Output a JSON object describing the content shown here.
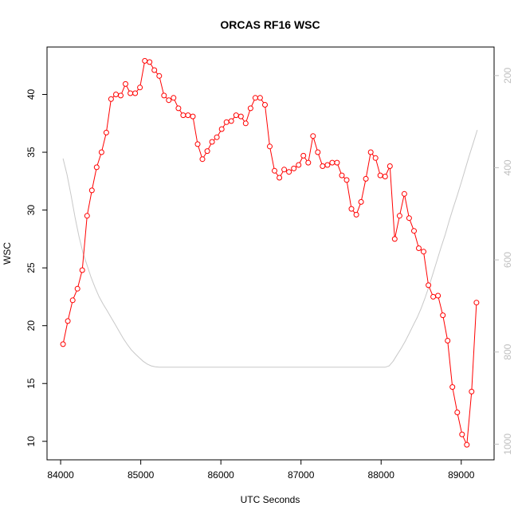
{
  "chart_data": {
    "type": "line",
    "title": "ORCAS RF16 WSC",
    "xlabel": "UTC Seconds",
    "ylabel": "WSC",
    "xlim": [
      83830,
      89410
    ],
    "ylim": [
      8.4,
      44.1
    ],
    "xticks": [
      84000,
      85000,
      86000,
      87000,
      88000,
      89000
    ],
    "yticks": [
      10,
      15,
      20,
      25,
      30,
      35,
      40
    ],
    "y2ticks": [
      200,
      400,
      600,
      800,
      1000
    ],
    "y2lim": [
      1034,
      138
    ],
    "series": [
      {
        "role": "primary",
        "color": "#ff0000",
        "marker": "circle-open",
        "x": [
          84030,
          84090,
          84150,
          84210,
          84270,
          84330,
          84390,
          84450,
          84510,
          84570,
          84630,
          84690,
          84750,
          84810,
          84870,
          84930,
          84990,
          85050,
          85110,
          85170,
          85230,
          85290,
          85350,
          85410,
          85470,
          85530,
          85590,
          85650,
          85710,
          85770,
          85830,
          85890,
          85950,
          86010,
          86070,
          86130,
          86190,
          86250,
          86310,
          86370,
          86430,
          86490,
          86550,
          86610,
          86670,
          86730,
          86790,
          86850,
          86910,
          86970,
          87030,
          87090,
          87150,
          87210,
          87270,
          87330,
          87390,
          87450,
          87510,
          87570,
          87630,
          87690,
          87750,
          87810,
          87870,
          87930,
          87990,
          88050,
          88110,
          88170,
          88230,
          88290,
          88350,
          88410,
          88470,
          88530,
          88590,
          88650,
          88710,
          88770,
          88830,
          88890,
          88950,
          89010,
          89070,
          89130,
          89190
        ],
        "y": [
          18.4,
          20.4,
          22.2,
          23.2,
          24.8,
          29.5,
          31.7,
          33.7,
          35.0,
          36.7,
          39.6,
          40.0,
          39.9,
          40.9,
          40.1,
          40.1,
          40.6,
          42.9,
          42.8,
          42.1,
          41.6,
          39.9,
          39.5,
          39.7,
          38.8,
          38.2,
          38.2,
          38.1,
          35.7,
          34.4,
          35.1,
          35.9,
          36.3,
          37.0,
          37.6,
          37.7,
          38.2,
          38.1,
          37.5,
          38.8,
          39.7,
          39.7,
          39.1,
          35.5,
          33.4,
          32.8,
          33.5,
          33.3,
          33.6,
          33.9,
          34.7,
          34.1,
          36.4,
          35.0,
          33.8,
          33.9,
          34.1,
          34.1,
          33.0,
          32.6,
          30.1,
          29.6,
          30.7,
          32.7,
          35.0,
          34.5,
          33.0,
          32.9,
          33.8,
          27.5,
          29.5,
          31.4,
          29.3,
          28.2,
          26.7,
          26.4,
          23.5,
          22.5,
          22.6,
          20.9,
          18.7,
          14.7,
          12.5,
          10.6,
          9.7,
          14.3,
          22.0
        ]
      },
      {
        "role": "secondary",
        "axis": "right",
        "color": "#c8c8c8",
        "x": [
          84030,
          84080,
          84130,
          84180,
          84230,
          84280,
          84330,
          84380,
          84430,
          84480,
          84530,
          84580,
          84630,
          84680,
          84730,
          84780,
          84830,
          84880,
          84930,
          84980,
          85030,
          85080,
          85130,
          85180,
          85230,
          85300,
          85500,
          85800,
          86100,
          86400,
          86700,
          87000,
          87300,
          87600,
          87900,
          88050,
          88100,
          88150,
          88200,
          88250,
          88300,
          88350,
          88400,
          88450,
          88500,
          88550,
          88600,
          88650,
          88700,
          88750,
          88800,
          88850,
          88900,
          88950,
          89000,
          89050,
          89100,
          89150,
          89200
        ],
        "y": [
          380,
          415,
          460,
          508,
          550,
          585,
          612,
          638,
          660,
          680,
          696,
          710,
          725,
          740,
          755,
          770,
          783,
          795,
          804,
          812,
          820,
          826,
          830,
          832,
          833,
          833,
          833,
          833,
          833,
          833,
          833,
          833,
          833,
          833,
          833,
          833,
          830,
          820,
          806,
          792,
          777,
          760,
          742,
          725,
          705,
          682,
          656,
          628,
          600,
          572,
          545,
          515,
          487,
          460,
          432,
          403,
          374,
          346,
          318
        ]
      }
    ]
  }
}
